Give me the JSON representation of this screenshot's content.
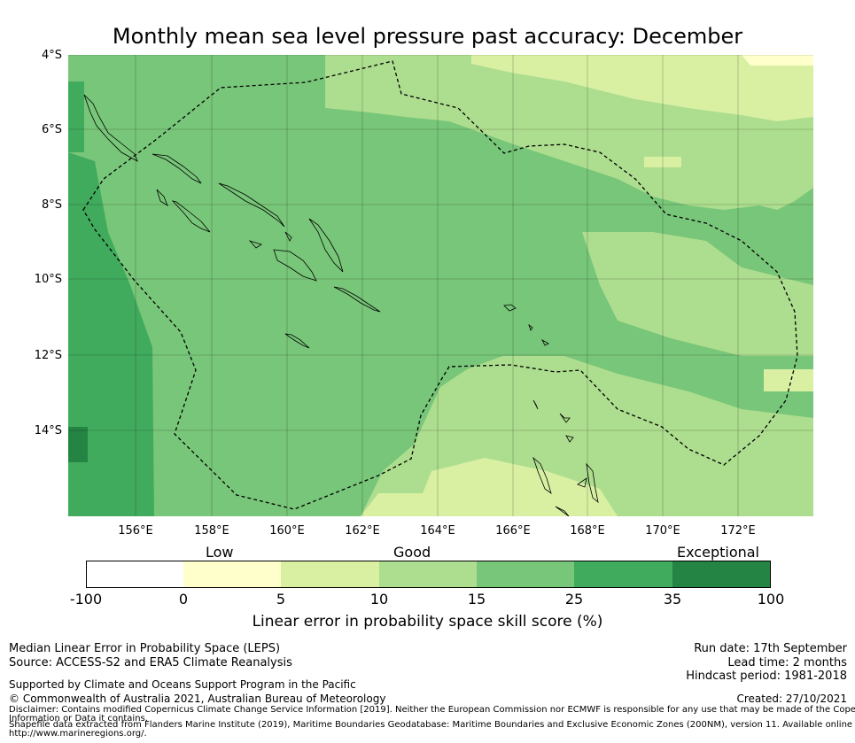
{
  "title": "Monthly mean sea level pressure past accuracy: December",
  "map": {
    "lat_labels": [
      "4°S",
      "6°S",
      "8°S",
      "10°S",
      "12°S",
      "14°S"
    ],
    "lon_labels": [
      "156°E",
      "158°E",
      "160°E",
      "162°E",
      "164°E",
      "166°E",
      "168°E",
      "170°E",
      "172°E"
    ],
    "extent": {
      "lon_min": 153.8,
      "lon_max": 173.6,
      "lat_min": -16.3,
      "lat_max": -4.0
    },
    "colors": {
      "lt0": "#ffffff",
      "0_5": "#ffffcc",
      "5_10": "#d9f0a3",
      "10_15": "#addd8e",
      "15_25": "#78c679",
      "25_35": "#41ab5d",
      "35_100": "#238443"
    },
    "boundary_style": "dashed-black"
  },
  "colorbar": {
    "category_labels": [
      "Low",
      "Good",
      "Exceptional"
    ],
    "tick_labels": [
      "-100",
      "0",
      "5",
      "10",
      "15",
      "25",
      "35",
      "100"
    ],
    "colors": [
      "#ffffff",
      "#ffffcc",
      "#d9f0a3",
      "#addd8e",
      "#78c679",
      "#41ab5d",
      "#238443"
    ],
    "caption": "Linear error in probability space skill score (%)"
  },
  "footer": {
    "line1": "Median Linear Error in Probability Space (LEPS)",
    "line2": "Source: ACCESS-S2 and ERA5 Climate Reanalysis",
    "supported": "Supported by Climate and Oceans Support Program in the Pacific",
    "copyright": "© Commonwealth of Australia 2021, Australian Bureau of Meteorology",
    "disclaimer1": "Disclaimer: Contains modified Copernicus Climate Change Service Information [2019]. Neither the European Commission nor ECMWF is responsible for any use that may be made of the Copernicus",
    "disclaimer2": "Information or Data it contains.",
    "shapefile1": "Shapefile data extracted from Flanders Marine Institute (2019), Maritime Boundaries Geodatabase: Maritime Boundaries and Exclusive Economic Zones (200NM), version 11. Available online at",
    "shapefile2": "http://www.marineregions.org/.",
    "run_date": "Run date: 17th September",
    "lead_time": "Lead time: 2 months",
    "hindcast": "Hindcast period: 1981-2018",
    "created": "Created: 27/10/2021"
  }
}
